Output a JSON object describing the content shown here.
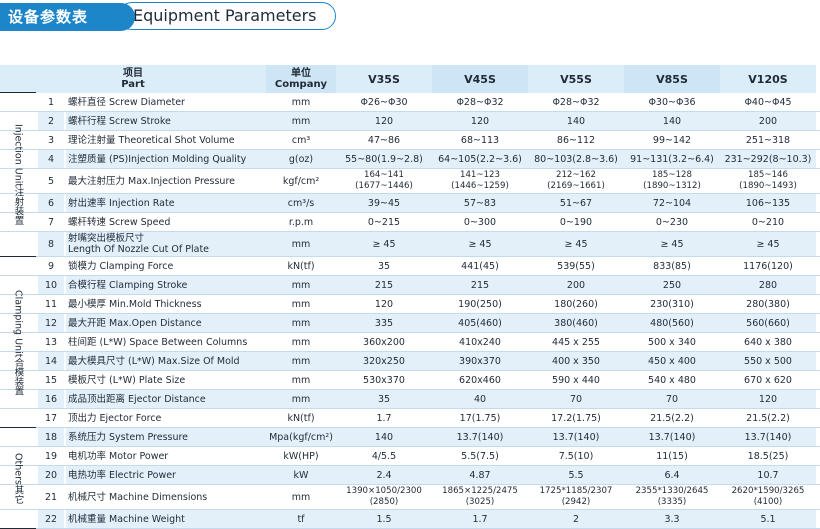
{
  "header": {
    "title_cn": "设备参数表",
    "title_en": "Equipment Parameters"
  },
  "columns": {
    "part_cn": "项目",
    "part_en": "Part",
    "company_cn": "单位",
    "company_en": "Company",
    "models": [
      "V35S",
      "V45S",
      "V55S",
      "V85S",
      "V120S"
    ]
  },
  "groups": [
    {
      "label_en": "Injection Unit",
      "label_cn": "注射装置",
      "start": 0,
      "end": 8
    },
    {
      "label_en": "Clamping Unit",
      "label_cn": "合模装置",
      "start": 8,
      "end": 17
    },
    {
      "label_en": "Others",
      "label_cn": "其它",
      "start": 17,
      "end": 22
    }
  ],
  "rows": [
    {
      "no": "1",
      "part": "螺杆直径 Screw Diameter",
      "unit": "mm",
      "values": [
        "Φ26~Φ30",
        "Φ28~Φ32",
        "Φ28~Φ32",
        "Φ30~Φ36",
        "Φ40~Φ45"
      ]
    },
    {
      "no": "2",
      "part": "螺杆行程 Screw Stroke",
      "unit": "mm",
      "values": [
        "120",
        "120",
        "140",
        "140",
        "200"
      ]
    },
    {
      "no": "3",
      "part": "理论注射量 Theoretical Shot Volume",
      "unit": "cm³",
      "values": [
        "47~86",
        "68~113",
        "86~112",
        "99~142",
        "251~318"
      ]
    },
    {
      "no": "4",
      "part": "注塑质量 (PS)Injection Molding Quality",
      "unit": "g(oz)",
      "values": [
        "55~80(1.9~2.8)",
        "64~105(2.2~3.6)",
        "80~103(2.8~3.6)",
        "91~131(3.2~6.4)",
        "231~292(8~10.3)"
      ]
    },
    {
      "no": "5",
      "part": "最大注射压力 Max.Injection Pressure",
      "unit": "kgf/cm²",
      "values": [
        "164~141\n(1677~1446)",
        "141~123\n(1446~1259)",
        "212~162\n(2169~1661)",
        "185~128\n(1890~1312)",
        "185~146\n(1890~1493)"
      ]
    },
    {
      "no": "6",
      "part": "射出速率 Injection Rate",
      "unit": "cm³/s",
      "values": [
        "39~45",
        "57~83",
        "51~67",
        "72~104",
        "106~135"
      ]
    },
    {
      "no": "7",
      "part": "螺杆转速 Screw Speed",
      "unit": "r.p.m",
      "values": [
        "0~215",
        "0~300",
        "0~190",
        "0~230",
        "0~210"
      ]
    },
    {
      "no": "8",
      "part": "射嘴突出模板尺寸\nLength Of Nozzle Cut Of Plate",
      "unit": "mm",
      "values": [
        "≥ 45",
        "≥ 45",
        "≥ 45",
        "≥ 45",
        "≥ 45"
      ]
    },
    {
      "no": "9",
      "part": "锁模力 Clamping Force",
      "unit": "kN(tf)",
      "values": [
        "35",
        "441(45)",
        "539(55)",
        "833(85)",
        "1176(120)"
      ]
    },
    {
      "no": "10",
      "part": "合模行程 Clamping Stroke",
      "unit": "mm",
      "values": [
        "215",
        "215",
        "200",
        "250",
        "280"
      ]
    },
    {
      "no": "11",
      "part": "最小模厚 Min.Mold Thickness",
      "unit": "mm",
      "values": [
        "120",
        "190(250)",
        "180(260)",
        "230(310)",
        "280(380)"
      ]
    },
    {
      "no": "12",
      "part": "最大开距 Max.Open Distance",
      "unit": "mm",
      "values": [
        "335",
        "405(460)",
        "380(460)",
        "480(560)",
        "560(660)"
      ]
    },
    {
      "no": "13",
      "part": "柱间距 (L*W) Space Between Columns",
      "unit": "mm",
      "values": [
        "360x200",
        "410x240",
        "445 x 255",
        "500 x 340",
        "640 x 380"
      ]
    },
    {
      "no": "14",
      "part": "最大模具尺寸 (L*W) Max.Size Of Mold",
      "unit": "mm",
      "values": [
        "320x250",
        "390x370",
        "400 x 350",
        "450 x 400",
        "550 x 500"
      ]
    },
    {
      "no": "15",
      "part": "模板尺寸 (L*W) Plate Size",
      "unit": "mm",
      "values": [
        "530x370",
        "620x460",
        "590 x 440",
        "540 x 480",
        "670 x 620"
      ]
    },
    {
      "no": "16",
      "part": "成品顶出距离 Ejector Distance",
      "unit": "mm",
      "values": [
        "35",
        "40",
        "70",
        "70",
        "120"
      ]
    },
    {
      "no": "17",
      "part": "顶出力 Ejector Force",
      "unit": "kN(tf)",
      "values": [
        "1.7",
        "17(1.75)",
        "17.2(1.75)",
        "21.5(2.2)",
        "21.5(2.2)"
      ]
    },
    {
      "no": "18",
      "part": "系统压力 System Pressure",
      "unit": "Mpa(kgf/cm²)",
      "values": [
        "140",
        "13.7(140)",
        "13.7(140)",
        "13.7(140)",
        "13.7(140)"
      ]
    },
    {
      "no": "19",
      "part": "电机功率 Motor Power",
      "unit": "kW(HP)",
      "values": [
        "4/5.5",
        "5.5(7.5)",
        "7.5(10)",
        "11(15)",
        "18.5(25)"
      ]
    },
    {
      "no": "20",
      "part": "电热功率 Electric Power",
      "unit": "kW",
      "values": [
        "2.4",
        "4.87",
        "5.5",
        "6.4",
        "10.7"
      ]
    },
    {
      "no": "21",
      "part": "机械尺寸 Machine Dimensions",
      "unit": "mm",
      "values": [
        "1390×1050/2300\n(2850)",
        "1865×1225/2475\n(3025)",
        "1725*1185/2307\n(2942)",
        "2355*1330/2645\n(3335)",
        "2620*1590/3265\n(4100)"
      ]
    },
    {
      "no": "22",
      "part": "机械重量 Machine Weight",
      "unit": "tf",
      "values": [
        "1.5",
        "1.7",
        "2",
        "3.3",
        "5.1"
      ]
    }
  ]
}
